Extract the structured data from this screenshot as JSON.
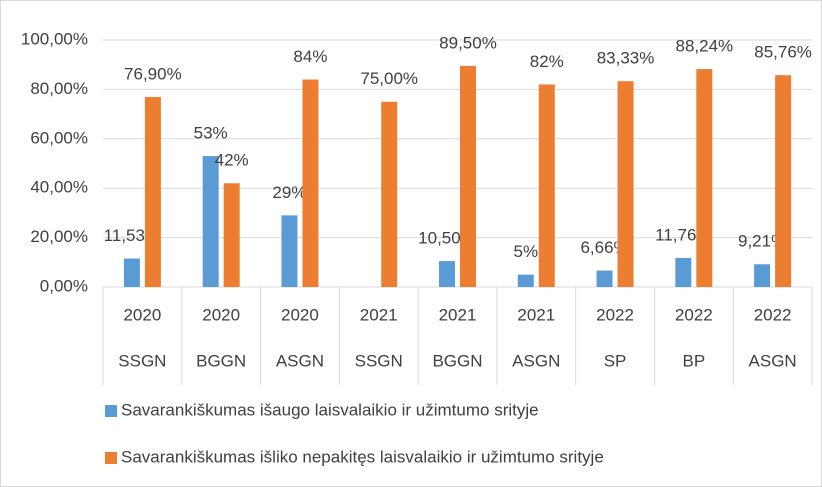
{
  "chart_data": {
    "type": "bar",
    "categories": [
      "2020",
      "2020",
      "2020",
      "2021",
      "2021",
      "2021",
      "2022",
      "2022",
      "2022"
    ],
    "category_groups": [
      "SSGN",
      "BGGN",
      "ASGN",
      "SSGN",
      "BGGN",
      "ASGN",
      "SP",
      "BP",
      "ASGN"
    ],
    "series": [
      {
        "name": "Savarankiškumas išaugo laisvalaikio ir užimtumo srityje",
        "color": "#5b9bd5",
        "values": [
          11.53,
          53,
          29,
          null,
          10.5,
          5,
          6.66,
          11.76,
          9.21
        ],
        "value_labels": [
          "11,53%",
          "53%",
          "29%",
          null,
          "10,50%",
          "5%",
          "6,66%",
          "11,76%",
          "9,21%"
        ]
      },
      {
        "name": "Savarankiškumas išliko nepakitęs laisvalaikio ir užimtumo srityje",
        "color": "#ed7d31",
        "values": [
          76.9,
          42,
          84,
          75,
          89.5,
          82,
          83.33,
          88.24,
          85.76
        ],
        "value_labels": [
          "76,90%",
          "42%",
          "84%",
          "75,00%",
          "89,50%",
          "82%",
          "83,33%",
          "88,24%",
          "85,76%"
        ]
      }
    ],
    "ylim": [
      0,
      100
    ],
    "yticks": [
      {
        "value": 0,
        "label": "0,00%"
      },
      {
        "value": 20,
        "label": "20,00%"
      },
      {
        "value": 40,
        "label": "40,00%"
      },
      {
        "value": 60,
        "label": "60,00%"
      },
      {
        "value": 80,
        "label": "80,00%"
      },
      {
        "value": 100,
        "label": "100,00%"
      }
    ],
    "grid": true,
    "legend": "bottom"
  }
}
